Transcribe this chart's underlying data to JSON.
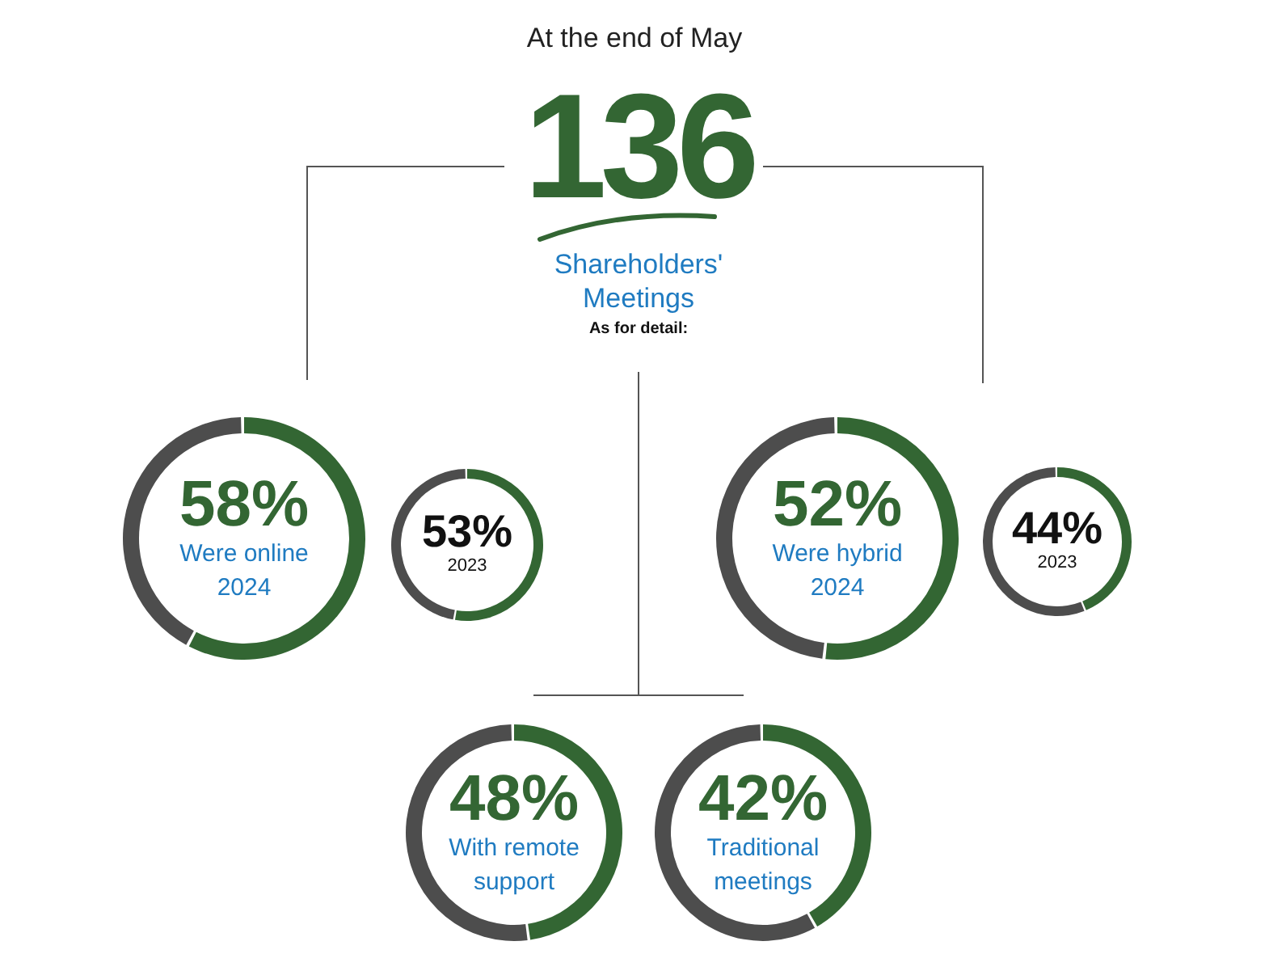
{
  "chart_data": [
    {
      "type": "other",
      "title": "At the end of May",
      "annotations": [
        "136",
        "Shareholders' Meetings",
        "As for detail:"
      ]
    },
    {
      "type": "donut",
      "title": "Were online",
      "subtitle": "2024",
      "categories": [
        null,
        null
      ],
      "values": [
        58,
        42
      ],
      "colors": [
        "#336633",
        "#4d4d4d"
      ],
      "value_labels": [
        "58%",
        null
      ]
    },
    {
      "type": "donut",
      "subtitle": "2023",
      "categories": [
        null,
        null
      ],
      "values": [
        53,
        47
      ],
      "colors": [
        "#336633",
        "#4d4d4d"
      ],
      "value_labels": [
        "53%",
        null
      ]
    },
    {
      "type": "donut",
      "title": "Were hybrid",
      "subtitle": "2024",
      "categories": [
        null,
        null
      ],
      "values": [
        52,
        48
      ],
      "colors": [
        "#336633",
        "#4d4d4d"
      ],
      "value_labels": [
        "52%",
        null
      ]
    },
    {
      "type": "donut",
      "subtitle": "2023",
      "categories": [
        null,
        null
      ],
      "values": [
        44,
        56
      ],
      "colors": [
        "#336633",
        "#4d4d4d"
      ],
      "value_labels": [
        "44%",
        null
      ]
    },
    {
      "type": "donut",
      "title": "With remote support",
      "categories": [
        null,
        null
      ],
      "values": [
        48,
        52
      ],
      "colors": [
        "#336633",
        "#4d4d4d"
      ],
      "value_labels": [
        "48%",
        null
      ]
    },
    {
      "type": "donut",
      "title": "Traditional meetings",
      "categories": [
        null,
        null
      ],
      "values": [
        42,
        58
      ],
      "colors": [
        "#336633",
        "#4d4d4d"
      ],
      "value_labels": [
        "42%",
        null
      ]
    }
  ]
}
